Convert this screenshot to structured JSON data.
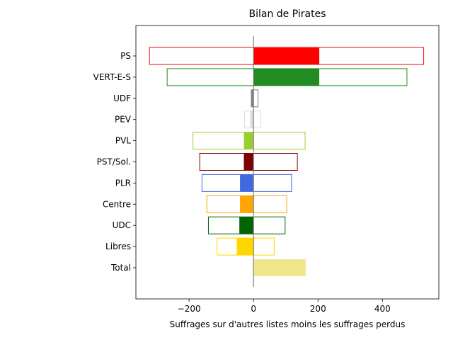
{
  "chart_data": {
    "type": "bar",
    "orientation": "horizontal",
    "title": "Bilan de Pirates",
    "xlabel": "Suffrages sur d'autres listes moins les suffrages perdus",
    "ylabel": "",
    "xlim": [
      -365,
      575
    ],
    "xticks": [
      -200,
      0,
      200,
      400
    ],
    "xtick_labels": [
      "−200",
      "0",
      "200",
      "400"
    ],
    "grid": false,
    "categories": [
      "PS",
      "VERT-E-S",
      "UDF",
      "PEV",
      "PVL",
      "PST/Sol.",
      "PLR",
      "Centre",
      "UDC",
      "Libres",
      "Total"
    ],
    "colors": [
      "#ff0000",
      "#228b22",
      "#808080",
      "#dcdcdc",
      "#9acd32",
      "#800000",
      "#4169e1",
      "#ffa500",
      "#006400",
      "#ffd700",
      "#f0e68c"
    ],
    "outline_low": [
      -323,
      -268,
      -7,
      -28,
      -188,
      -167,
      -160,
      -145,
      -140,
      -113,
      0
    ],
    "outline_high": [
      528,
      476,
      14,
      22,
      160,
      136,
      118,
      103,
      98,
      64,
      0
    ],
    "filled_values": [
      204,
      204,
      -7,
      -10,
      -30,
      -30,
      -42,
      -42,
      -44,
      -52,
      162
    ]
  }
}
